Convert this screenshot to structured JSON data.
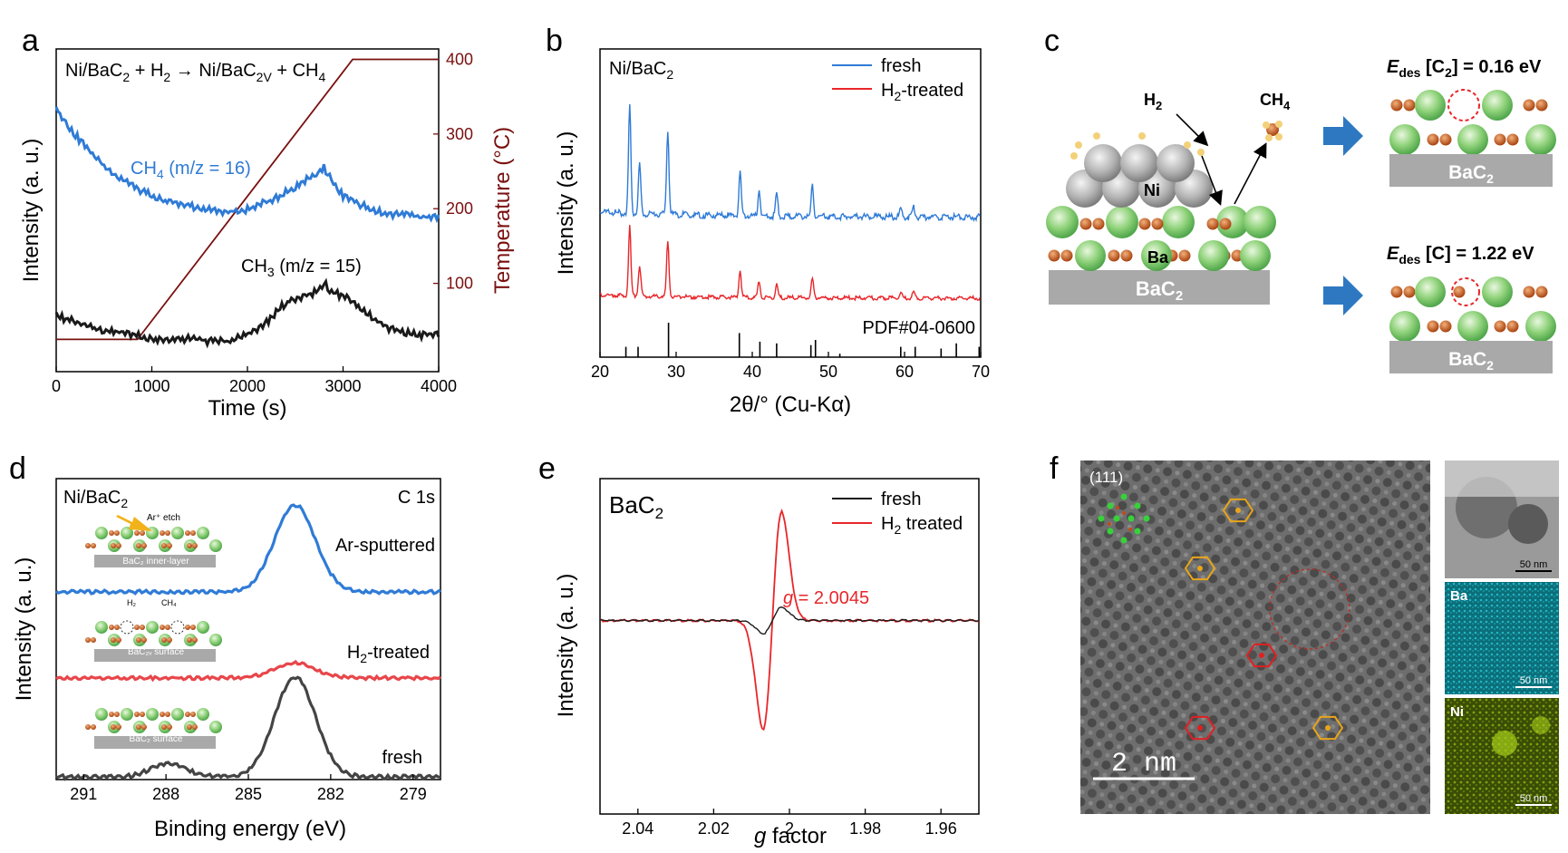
{
  "panels": {
    "a": {
      "label": "a",
      "reaction_parts": [
        "Ni/BaC",
        "2",
        " + H",
        "2",
        " → Ni/BaC",
        "2V",
        " + CH",
        "4"
      ],
      "ylabel": "Intensity (a. u.)",
      "y2label": "Temperature (°C)",
      "xlabel": "Time (s)",
      "ch4_label": [
        "CH",
        "4",
        " (m/z = 16)"
      ],
      "ch3_label": [
        "CH",
        "3",
        " (m/z = 15)"
      ]
    },
    "b": {
      "label": "b",
      "sample": [
        "Ni/BaC",
        "2"
      ],
      "ylabel": "Intensity (a. u.)",
      "xlabel": "2θ/° (Cu-Kα)",
      "legend_fresh": "fresh",
      "legend_h2": [
        "H",
        "2",
        "-treated"
      ],
      "pdf": "PDF#04-0600"
    },
    "c": {
      "label": "c",
      "h2": [
        "H",
        "2"
      ],
      "ch4": [
        "CH",
        "4"
      ],
      "ni": "Ni",
      "ba": "Ba",
      "substrate": [
        "BaC",
        "2"
      ],
      "edes_c2": [
        "E",
        "des",
        " [C",
        "2",
        "] = 0.16 eV"
      ],
      "edes_c": [
        "E",
        "des",
        " [C] = 1.22 eV"
      ]
    },
    "d": {
      "label": "d",
      "sample": [
        "Ni/BaC",
        "2"
      ],
      "core": "C 1s",
      "ylabel": "Intensity (a. u.)",
      "xlabel": "Binding energy (eV)",
      "ar": "Ar-sputtered",
      "h2": [
        "H",
        "2",
        "-treated"
      ],
      "fresh": "fresh",
      "inset_ar": "Ar⁺ etch",
      "inset_inner": "BaC₂ inner-layer",
      "inset_h2": "H₂",
      "inset_ch4": "CH₄",
      "inset_vsurf": "BaC₂ᵥ surface",
      "inset_surf": "BaC₂ surface"
    },
    "e": {
      "label": "e",
      "sample": [
        "BaC",
        "2"
      ],
      "ylabel": "Intensity (a. u.)",
      "xlabel_g": "g",
      "xlabel_rest": " factor",
      "legend_fresh": "fresh",
      "legend_h2": [
        "H",
        "2",
        " treated"
      ],
      "g_value": [
        "g",
        " = 2.0045"
      ]
    },
    "f": {
      "label": "f",
      "plane": "(111)",
      "scale_main": "2  nm",
      "scale_small": "50 nm",
      "map_ba": "Ba",
      "map_ni": "Ni"
    }
  },
  "colors": {
    "blue": "#2f7bd6",
    "red": "#e8262a",
    "black": "#1a1a1a",
    "darkred": "#7a1010",
    "green": "#7fc66d",
    "orange": "#b8501a",
    "grey": "#9a9a9a",
    "arrow": "#2e78c2"
  },
  "chart_data": [
    {
      "panel": "a",
      "type": "line",
      "xlim": [
        0,
        4000
      ],
      "y2lim": [
        0,
        420
      ],
      "x_ticks": [
        0,
        1000,
        2000,
        3000,
        4000
      ],
      "y2_ticks": [
        100,
        200,
        300,
        400
      ],
      "series": [
        {
          "name": "CH4 (m/z = 16)",
          "x": [
            0,
            200,
            400,
            600,
            800,
            1000,
            1200,
            1400,
            1600,
            1800,
            2000,
            2200,
            2400,
            2600,
            2700,
            2800,
            2900,
            3000,
            3200,
            3400,
            3600,
            3800,
            4000
          ],
          "y": [
            0.82,
            0.74,
            0.67,
            0.62,
            0.58,
            0.55,
            0.53,
            0.52,
            0.51,
            0.5,
            0.51,
            0.53,
            0.56,
            0.6,
            0.61,
            0.64,
            0.59,
            0.55,
            0.52,
            0.5,
            0.49,
            0.49,
            0.48
          ]
        },
        {
          "name": "CH3 (m/z = 15)",
          "x": [
            0,
            200,
            400,
            600,
            800,
            1000,
            1200,
            1400,
            1600,
            1800,
            2000,
            2200,
            2400,
            2600,
            2700,
            2800,
            2900,
            3000,
            3200,
            3400,
            3600,
            3800,
            4000
          ],
          "y": [
            0.18,
            0.16,
            0.14,
            0.13,
            0.12,
            0.11,
            0.1,
            0.11,
            0.1,
            0.1,
            0.12,
            0.16,
            0.22,
            0.24,
            0.25,
            0.28,
            0.25,
            0.24,
            0.2,
            0.15,
            0.13,
            0.12,
            0.12
          ]
        },
        {
          "name": "Temperature",
          "axis": "right",
          "x": [
            0,
            850,
            3100,
            4000
          ],
          "y": [
            25,
            25,
            400,
            400
          ]
        }
      ]
    },
    {
      "panel": "b",
      "type": "line",
      "xlim": [
        20,
        70
      ],
      "x_ticks": [
        20,
        30,
        40,
        50,
        60,
        70
      ],
      "peaks": [
        {
          "x": 23.9,
          "h": 1.0
        },
        {
          "x": 25.2,
          "h": 0.45
        },
        {
          "x": 28.9,
          "h": 0.8
        },
        {
          "x": 38.4,
          "h": 0.4
        },
        {
          "x": 40.9,
          "h": 0.25
        },
        {
          "x": 43.2,
          "h": 0.2
        },
        {
          "x": 47.9,
          "h": 0.28
        },
        {
          "x": 59.5,
          "h": 0.08
        },
        {
          "x": 61.2,
          "h": 0.09
        }
      ],
      "series": [
        {
          "name": "fresh"
        },
        {
          "name": "H2-treated"
        }
      ],
      "reference_lines": [
        {
          "x": 23.4,
          "h": 0.3
        },
        {
          "x": 25.0,
          "h": 0.3
        },
        {
          "x": 29.0,
          "h": 1.0
        },
        {
          "x": 38.3,
          "h": 0.7
        },
        {
          "x": 41.0,
          "h": 0.45
        },
        {
          "x": 43.2,
          "h": 0.4
        },
        {
          "x": 47.7,
          "h": 0.35
        },
        {
          "x": 48.3,
          "h": 0.5
        },
        {
          "x": 51.5,
          "h": 0.1
        },
        {
          "x": 59.5,
          "h": 0.3
        },
        {
          "x": 61.4,
          "h": 0.3
        },
        {
          "x": 64.8,
          "h": 0.25
        },
        {
          "x": 66.8,
          "h": 0.4
        },
        {
          "x": 69.8,
          "h": 0.3
        }
      ]
    },
    {
      "panel": "d",
      "type": "line",
      "xlim": [
        292,
        278
      ],
      "x_ticks": [
        291,
        288,
        285,
        282,
        279
      ],
      "series": [
        {
          "name": "Ar-sputtered",
          "peak": 283.3,
          "height": 1.0,
          "baseline": 0
        },
        {
          "name": "H2-treated",
          "peak": 283.3,
          "height": 0.18,
          "baseline": 0
        },
        {
          "name": "fresh",
          "peak": 283.3,
          "height": 1.0,
          "baseline": 0,
          "minor_peak": 287.9,
          "minor_height": 0.14
        }
      ]
    },
    {
      "panel": "e",
      "type": "line",
      "xlim": [
        2.05,
        1.95
      ],
      "x_ticks": [
        2.04,
        2.02,
        2.0,
        1.98,
        1.96
      ],
      "series": [
        {
          "name": "fresh",
          "center": 2.0045,
          "amplitude": 0.12
        },
        {
          "name": "H2 treated",
          "center": 2.0045,
          "amplitude": 1.0
        }
      ]
    }
  ]
}
